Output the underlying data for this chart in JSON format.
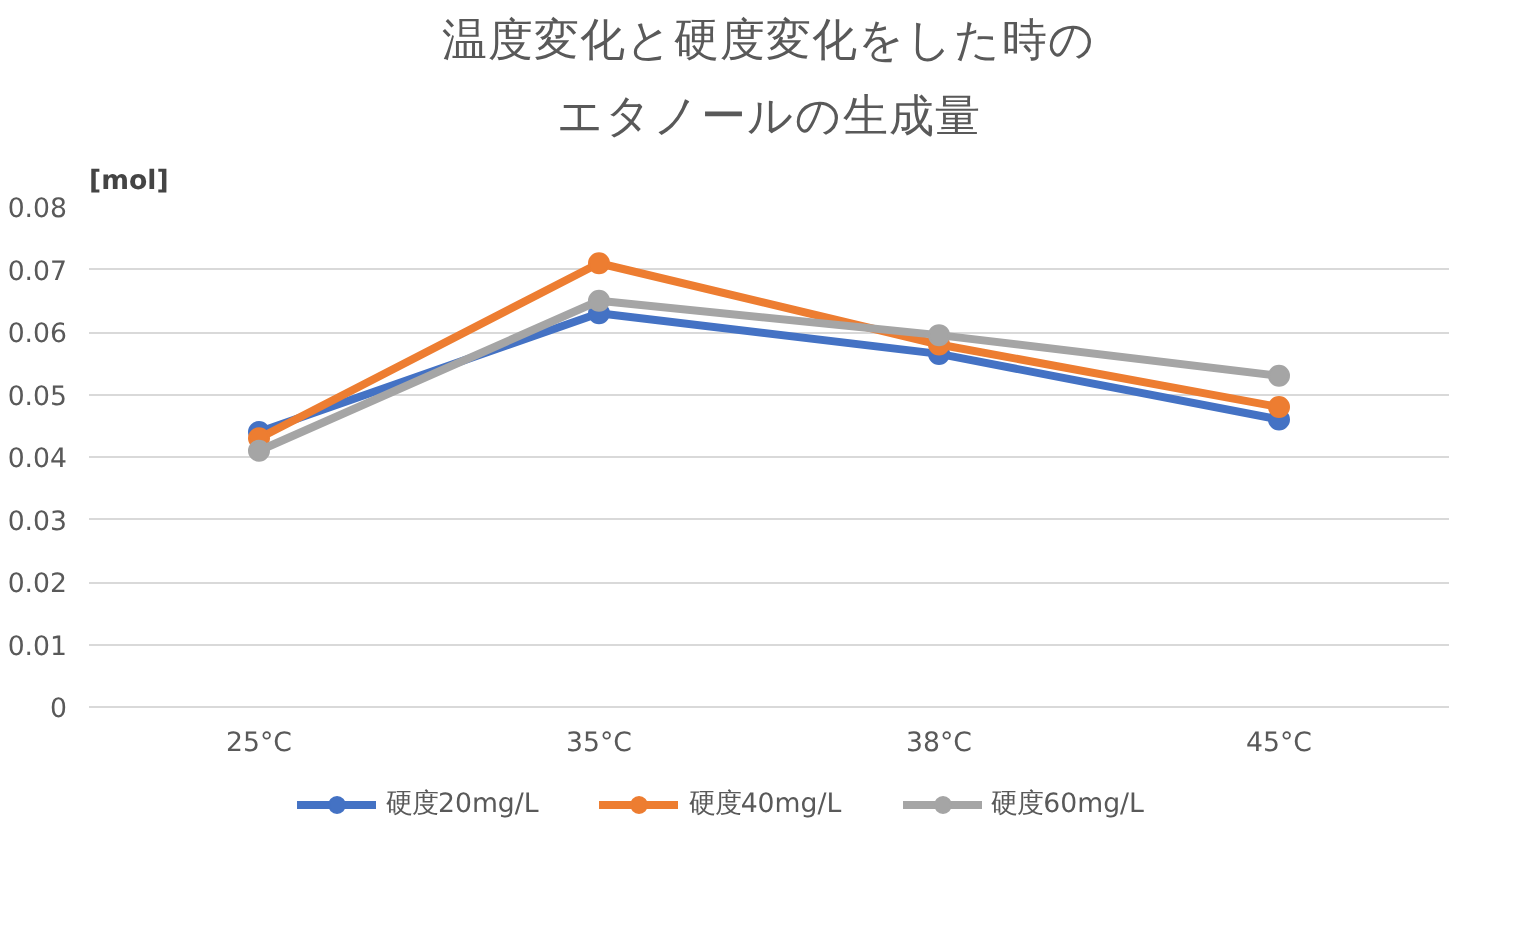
{
  "chart_data": {
    "type": "line",
    "title": "温度変化と硬度変化をした時の",
    "subtitle": "エタノールの生成量",
    "ylabel": "[mol]",
    "categories": [
      "25°C",
      "35°C",
      "38°C",
      "45°C"
    ],
    "series": [
      {
        "name": "硬度20mg/L",
        "color": "#4472c4",
        "values": [
          0.044,
          0.063,
          0.0565,
          0.046
        ]
      },
      {
        "name": "硬度40mg/L",
        "color": "#ed7d31",
        "values": [
          0.043,
          0.071,
          0.058,
          0.048
        ]
      },
      {
        "name": "硬度60mg/L",
        "color": "#a5a5a5",
        "values": [
          0.041,
          0.065,
          0.0595,
          0.053
        ]
      }
    ],
    "ylim": [
      0,
      0.08
    ],
    "yticks": [
      0,
      0.01,
      0.02,
      0.03,
      0.04,
      0.05,
      0.06,
      0.07,
      0.08
    ],
    "grid": "y",
    "legend": "bottom",
    "marker": "circle",
    "line_style": "solid"
  }
}
